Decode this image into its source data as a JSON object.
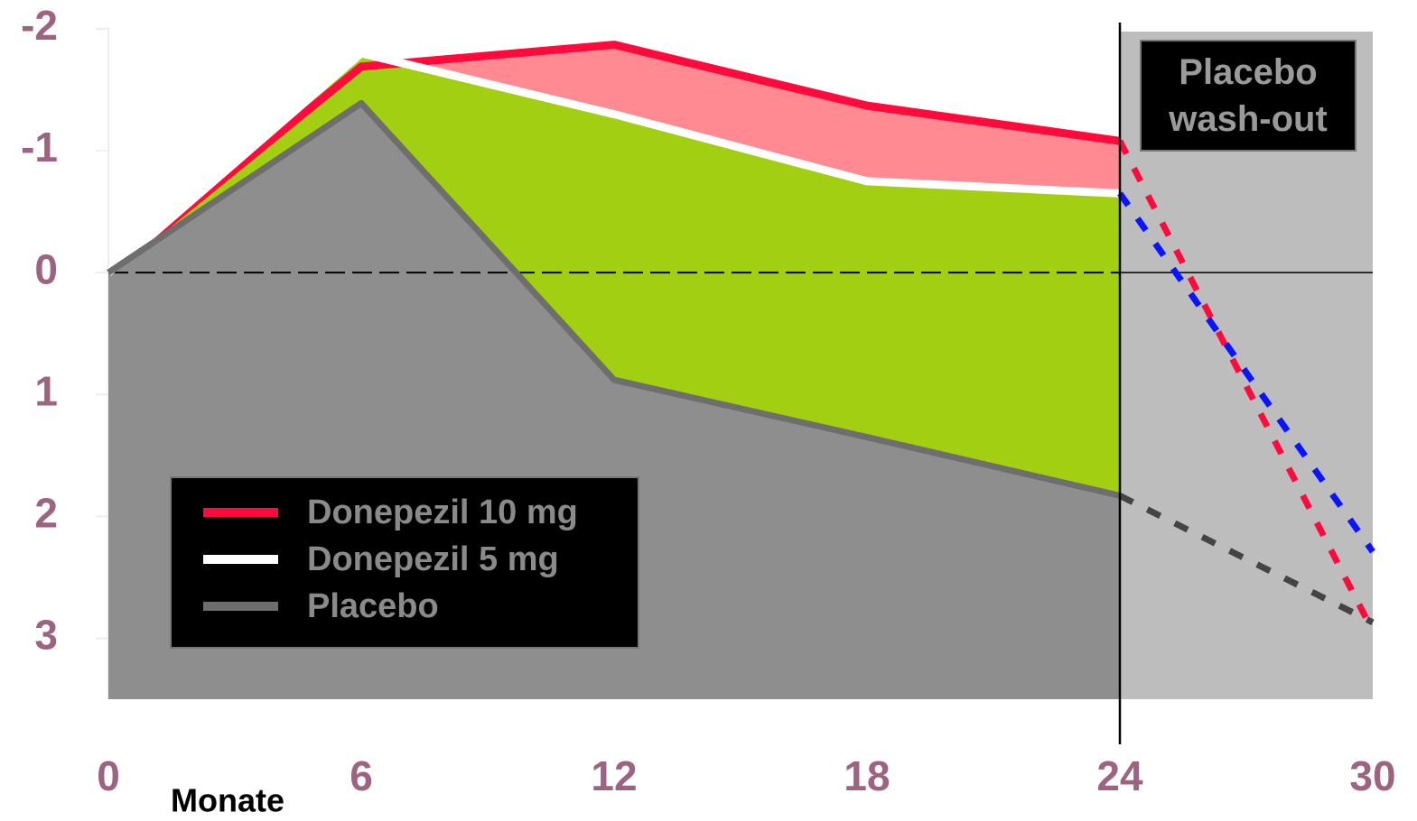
{
  "chart_data": {
    "type": "line",
    "xlabel": "Monate",
    "x": [
      0,
      6,
      12,
      18,
      24,
      30
    ],
    "xlim": [
      0,
      30
    ],
    "xticks": [
      0,
      6,
      12,
      18,
      24,
      30
    ],
    "ylim": [
      -2,
      3.5
    ],
    "yticks": [
      -2,
      -1,
      0,
      1,
      2,
      3
    ],
    "y_inverted": true,
    "reference_line": 0,
    "series": [
      {
        "name": "Donepezil 10 mg",
        "color": "#ff0a3c",
        "washout_color": "#ff0a3c",
        "fill": "#ff8a92",
        "values": [
          0,
          -1.69,
          -1.87,
          -1.37,
          -1.08,
          2.94
        ]
      },
      {
        "name": "Donepezil 5 mg",
        "color": "#ffffff",
        "washout_color": "#0a14ff",
        "fill": "#a2cf12",
        "values": [
          0,
          -1.8,
          -1.3,
          -0.75,
          -0.65,
          2.29
        ]
      },
      {
        "name": "Placebo",
        "color": "#6e6e6e",
        "washout_color": "#444444",
        "fill": "#8e8e8e",
        "values": [
          0,
          -1.39,
          0.88,
          1.35,
          1.83,
          2.87
        ]
      }
    ],
    "washout": {
      "label": "Placebo wash-out",
      "x_start": 24,
      "x_end": 30,
      "color": "#bdbdbd"
    }
  }
}
